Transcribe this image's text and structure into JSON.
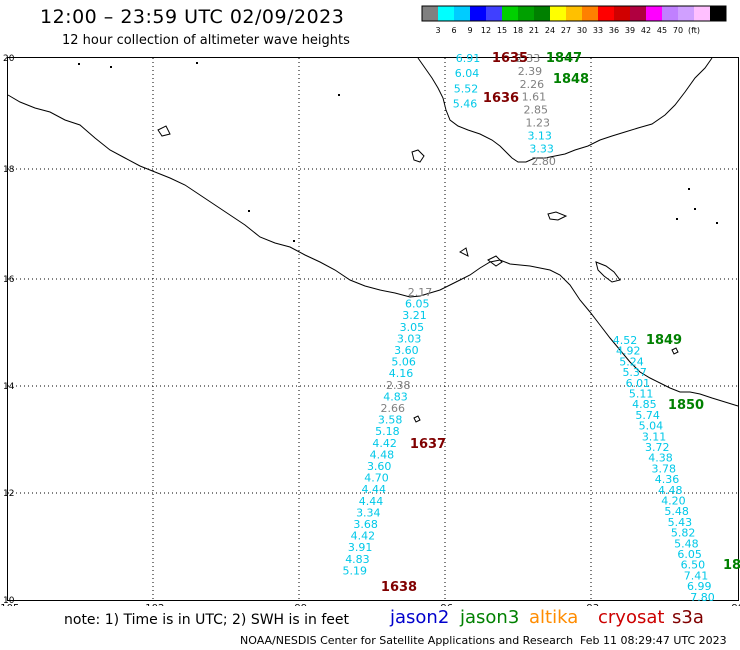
{
  "header": {
    "title": "12:00 – 23:59 UTC 02/09/2023",
    "subtitle": "12 hour collection of altimeter wave heights"
  },
  "colorbar": {
    "colors": [
      "#808080",
      "#00ffff",
      "#00ccff",
      "#0000ff",
      "#4040ff",
      "#00d000",
      "#00a000",
      "#008000",
      "#ffff00",
      "#ffc000",
      "#ff8000",
      "#ff0000",
      "#d00000",
      "#b00040",
      "#ff00ff",
      "#c080ff",
      "#d0a0ff",
      "#ffc0ff",
      "#000000"
    ],
    "ticks": [
      "3",
      "6",
      "9",
      "12",
      "15",
      "18",
      "21",
      "24",
      "27",
      "30",
      "33",
      "36",
      "39",
      "42",
      "45",
      "70",
      "(ft)"
    ]
  },
  "axes": {
    "lat_ticks": [
      "20",
      "18",
      "16",
      "14",
      "12",
      "10"
    ],
    "lon_ticks": [
      "-105",
      "-102",
      "-99",
      "-96",
      "-93",
      "-90"
    ]
  },
  "swh_colors": {
    "cyan": "#00c8e8",
    "gray": "#808080",
    "dark_red": "#800000",
    "green": "#008000"
  },
  "tracks": [
    {
      "id": "track-west",
      "values": [
        {
          "v": "2.17",
          "c": "gray"
        },
        {
          "v": "6.05",
          "c": "cyan"
        },
        {
          "v": "3.21",
          "c": "cyan"
        },
        {
          "v": "3.05",
          "c": "cyan"
        },
        {
          "v": "3.03",
          "c": "cyan"
        },
        {
          "v": "3.60",
          "c": "cyan"
        },
        {
          "v": "5.06",
          "c": "cyan"
        },
        {
          "v": "4.16",
          "c": "cyan"
        },
        {
          "v": "2.38",
          "c": "gray"
        },
        {
          "v": "4.83",
          "c": "cyan"
        },
        {
          "v": "2.66",
          "c": "gray"
        },
        {
          "v": "3.58",
          "c": "cyan"
        },
        {
          "v": "5.18",
          "c": "cyan"
        },
        {
          "v": "4.42",
          "c": "cyan"
        },
        {
          "v": "4.48",
          "c": "cyan"
        },
        {
          "v": "3.60",
          "c": "cyan"
        },
        {
          "v": "4.70",
          "c": "cyan"
        },
        {
          "v": "4.44",
          "c": "cyan"
        },
        {
          "v": "4.44",
          "c": "cyan"
        },
        {
          "v": "3.34",
          "c": "cyan"
        },
        {
          "v": "3.68",
          "c": "cyan"
        },
        {
          "v": "4.42",
          "c": "cyan"
        },
        {
          "v": "3.91",
          "c": "cyan"
        },
        {
          "v": "4.83",
          "c": "cyan"
        },
        {
          "v": "5.19",
          "c": "cyan"
        }
      ]
    },
    {
      "id": "track-gulf-cyan",
      "values": [
        {
          "v": "6.91",
          "c": "cyan"
        },
        {
          "v": "6.04",
          "c": "cyan"
        },
        {
          "v": "5.52",
          "c": "cyan"
        },
        {
          "v": "5.46",
          "c": "cyan"
        }
      ]
    },
    {
      "id": "track-gulf-gray",
      "values": [
        {
          "v": "2.33",
          "c": "gray"
        },
        {
          "v": "2.39",
          "c": "gray"
        },
        {
          "v": "2.26",
          "c": "gray"
        },
        {
          "v": "1.61",
          "c": "gray"
        },
        {
          "v": "2.85",
          "c": "gray"
        },
        {
          "v": "1.23",
          "c": "gray"
        },
        {
          "v": "3.13",
          "c": "cyan"
        },
        {
          "v": "3.33",
          "c": "cyan"
        },
        {
          "v": "2.80",
          "c": "gray"
        }
      ]
    },
    {
      "id": "track-east",
      "values": [
        {
          "v": "4.52",
          "c": "cyan"
        },
        {
          "v": "4.92",
          "c": "cyan"
        },
        {
          "v": "5.24",
          "c": "cyan"
        },
        {
          "v": "5.37",
          "c": "cyan"
        },
        {
          "v": "6.01",
          "c": "cyan"
        },
        {
          "v": "5.11",
          "c": "cyan"
        },
        {
          "v": "4.85",
          "c": "cyan"
        },
        {
          "v": "5.74",
          "c": "cyan"
        },
        {
          "v": "5.04",
          "c": "cyan"
        },
        {
          "v": "3.11",
          "c": "cyan"
        },
        {
          "v": "3.72",
          "c": "cyan"
        },
        {
          "v": "4.38",
          "c": "cyan"
        },
        {
          "v": "3.78",
          "c": "cyan"
        },
        {
          "v": "4.36",
          "c": "cyan"
        },
        {
          "v": "4.48",
          "c": "cyan"
        },
        {
          "v": "4.20",
          "c": "cyan"
        },
        {
          "v": "5.48",
          "c": "cyan"
        },
        {
          "v": "5.43",
          "c": "cyan"
        },
        {
          "v": "5.82",
          "c": "cyan"
        },
        {
          "v": "5.48",
          "c": "cyan"
        },
        {
          "v": "6.05",
          "c": "cyan"
        },
        {
          "v": "6.50",
          "c": "cyan"
        },
        {
          "v": "7.41",
          "c": "cyan"
        },
        {
          "v": "6.99",
          "c": "cyan"
        },
        {
          "v": "7.80",
          "c": "cyan"
        }
      ]
    }
  ],
  "pass_times": [
    {
      "t": "1635",
      "c": "dark_red"
    },
    {
      "t": "1847",
      "c": "green"
    },
    {
      "t": "1848",
      "c": "green"
    },
    {
      "t": "1636",
      "c": "dark_red"
    },
    {
      "t": "1849",
      "c": "green"
    },
    {
      "t": "1850",
      "c": "green"
    },
    {
      "t": "1637",
      "c": "dark_red"
    },
    {
      "t": "1638",
      "c": "dark_red"
    },
    {
      "t": "18",
      "c": "green"
    }
  ],
  "footer": {
    "note": "note:  1) Time is in UTC;  2) SWH is in feet",
    "satellites": {
      "jason2": "jason2",
      "jason3": "jason3",
      "altika": "altika",
      "cryosat": "cryosat",
      "s3a": "s3a"
    },
    "credit": "NOAA/NESDIS Center for Satellite Applications and Research",
    "timestamp": "Feb 11 08:29:47 UTC 2023"
  }
}
